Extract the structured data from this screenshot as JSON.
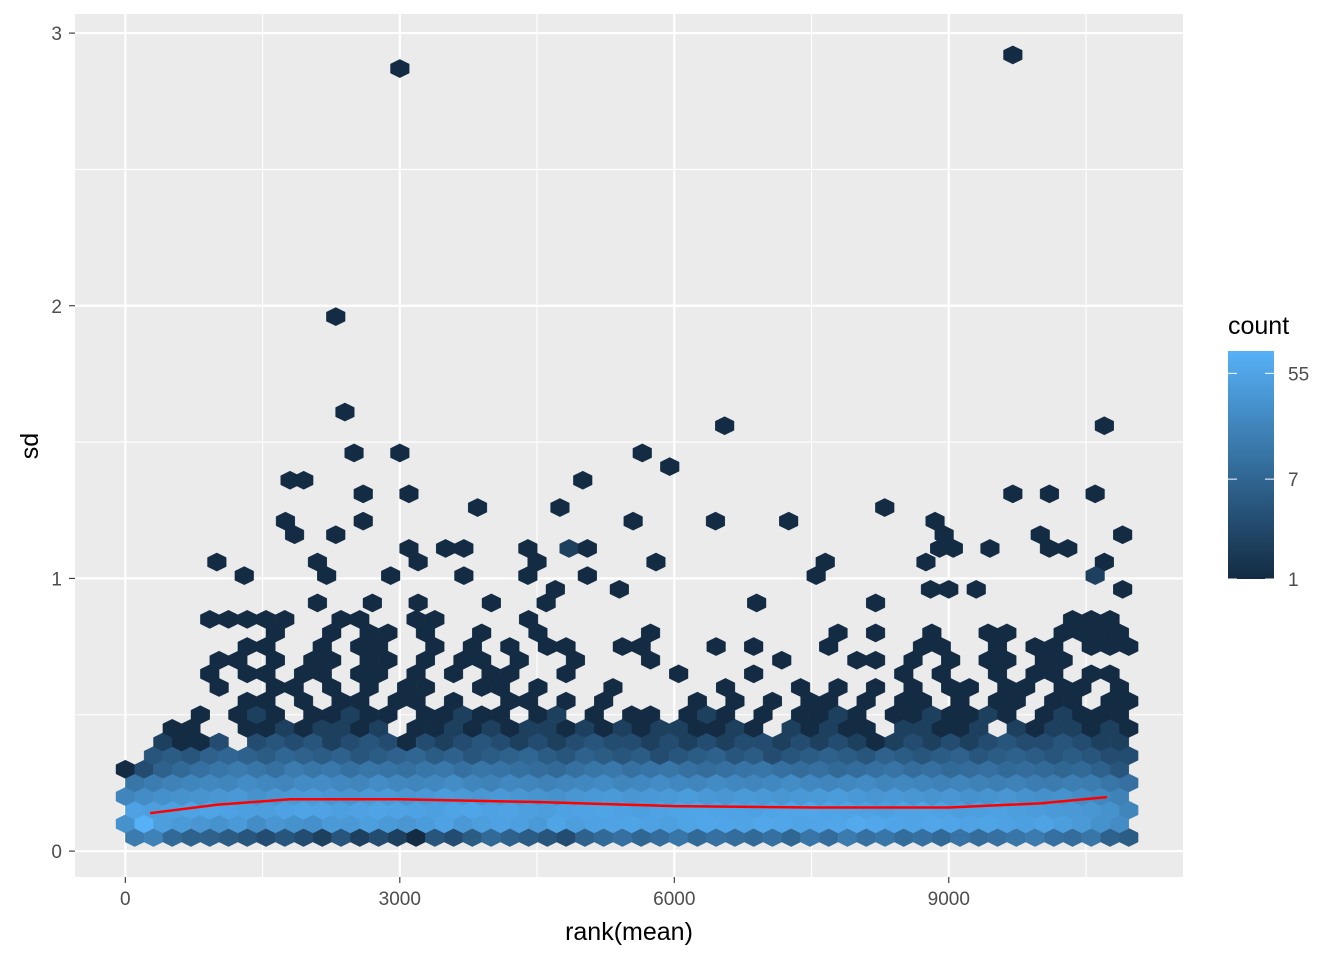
{
  "chart_data": {
    "type": "hexbin",
    "title": "",
    "xlabel": "rank(mean)",
    "ylabel": "sd",
    "xlim": [
      -550,
      11560
    ],
    "ylim": [
      -0.095,
      3.07
    ],
    "x_ticks": [
      0,
      3000,
      6000,
      9000
    ],
    "x_tick_labels": [
      "0",
      "3000",
      "6000",
      "9000"
    ],
    "y_ticks": [
      0,
      1,
      2,
      3
    ],
    "y_tick_labels": [
      "0",
      "1",
      "2",
      "3"
    ],
    "grid": true,
    "legend": {
      "title": "count",
      "placement": "right",
      "scale": "log10",
      "limits": [
        1,
        85
      ],
      "breaks": [
        1,
        7,
        55
      ],
      "break_labels": [
        "1",
        "7",
        "55"
      ],
      "low_color": "#132B43",
      "high_color": "#56B1F7"
    },
    "bin_x_step": 205,
    "hex_rows": [
      {
        "sd": 0.05,
        "x0": 102.5,
        "counts": [
          14,
          18,
          8,
          6,
          6,
          5,
          4,
          3,
          4,
          3,
          2,
          4,
          2,
          3,
          2,
          1,
          4,
          3,
          5,
          8,
          6,
          5,
          4,
          3,
          6,
          8,
          10,
          7,
          9,
          12,
          8,
          10,
          9,
          8,
          10,
          7,
          12,
          9,
          14,
          10,
          12,
          9,
          10,
          8,
          11,
          9,
          10,
          12,
          14,
          10,
          9,
          12,
          6,
          5
        ]
      },
      {
        "sd": 0.1,
        "x0": 0,
        "counts": [
          30,
          85,
          45,
          40,
          35,
          30,
          40,
          25,
          35,
          30,
          28,
          40,
          38,
          45,
          40,
          35,
          42,
          50,
          38,
          45,
          50,
          48,
          40,
          55,
          45,
          50,
          52,
          55,
          50,
          48,
          55,
          60,
          58,
          55,
          62,
          60,
          55,
          58,
          60,
          65,
          62,
          58,
          55,
          60,
          58,
          52,
          55,
          50,
          48,
          52,
          45,
          40,
          30,
          25
        ]
      },
      {
        "sd": 0.15,
        "x0": 102.5,
        "counts": [
          50,
          45,
          48,
          52,
          55,
          50,
          48,
          45,
          50,
          55,
          52,
          48,
          50,
          55,
          52,
          50,
          48,
          55,
          58,
          50,
          52,
          48,
          45,
          50,
          52,
          55,
          50,
          48,
          52,
          55,
          58,
          55,
          52,
          50,
          55,
          58,
          60,
          55,
          52,
          50,
          48,
          52,
          55,
          50,
          45,
          48,
          50,
          45,
          42,
          40,
          38,
          35,
          30,
          20
        ]
      },
      {
        "sd": 0.2,
        "x0": 0,
        "counts": [
          20,
          25,
          28,
          30,
          32,
          35,
          38,
          30,
          35,
          38,
          40,
          35,
          32,
          38,
          40,
          35,
          38,
          42,
          40,
          35,
          38,
          35,
          32,
          30,
          35,
          38,
          40,
          35,
          38,
          40,
          42,
          38,
          35,
          40,
          38,
          35,
          38,
          40,
          42,
          38,
          35,
          38,
          35,
          32,
          35,
          30,
          32,
          35,
          30,
          28,
          30,
          25,
          22,
          18
        ]
      },
      {
        "sd": 0.25,
        "x0": 102.5,
        "counts": [
          12,
          15,
          18,
          20,
          22,
          20,
          25,
          22,
          20,
          24,
          25,
          22,
          20,
          25,
          22,
          20,
          22,
          25,
          20,
          18,
          22,
          20,
          18,
          20,
          22,
          24,
          20,
          22,
          25,
          22,
          20,
          24,
          22,
          20,
          22,
          25,
          22,
          20,
          22,
          24,
          20,
          22,
          20,
          18,
          20,
          18,
          16,
          18,
          15,
          14,
          16,
          15,
          12,
          10
        ]
      },
      {
        "sd": 0.3,
        "x0": 0,
        "counts": [
          1,
          3,
          6,
          8,
          10,
          12,
          14,
          12,
          10,
          14,
          12,
          13,
          10,
          12,
          11,
          10,
          12,
          13,
          10,
          12,
          11,
          10,
          9,
          8,
          10,
          12,
          13,
          10,
          11,
          12,
          10,
          9,
          10,
          11,
          12,
          10,
          9,
          10,
          8,
          9,
          10,
          11,
          9,
          10,
          8,
          9,
          10,
          8,
          9,
          8,
          7,
          8,
          6,
          4
        ]
      },
      {
        "sd": 0.35,
        "x0": 102.5,
        "counts": [
          0,
          4,
          5,
          4,
          6,
          7,
          6,
          5,
          7,
          6,
          5,
          6,
          4,
          5,
          6,
          7,
          5,
          6,
          4,
          5,
          6,
          7,
          5,
          4,
          6,
          5,
          4,
          5,
          3,
          4,
          5,
          6,
          4,
          5,
          3,
          4,
          5,
          6,
          5,
          4,
          6,
          5,
          4,
          5,
          6,
          4,
          5,
          6,
          5,
          4,
          5,
          4,
          3,
          3
        ]
      },
      {
        "sd": 0.4,
        "x0": 0,
        "counts": [
          0,
          0,
          2,
          1,
          1,
          3,
          0,
          3,
          4,
          3,
          4,
          2,
          3,
          4,
          3,
          1,
          3,
          2,
          3,
          4,
          3,
          2,
          3,
          2,
          3,
          4,
          3,
          3,
          2,
          3,
          2,
          3,
          2,
          3,
          3,
          2,
          3,
          2,
          3,
          2,
          1,
          2,
          3,
          2,
          3,
          2,
          3,
          4,
          3,
          3,
          4,
          3,
          2,
          2
        ]
      },
      {
        "sd": 0.45,
        "x0": 102.5,
        "counts": [
          0,
          0,
          1,
          1,
          0,
          0,
          1,
          1,
          2,
          1,
          2,
          2,
          1,
          2,
          0,
          1,
          1,
          2,
          1,
          2,
          1,
          2,
          2,
          1,
          2,
          1,
          2,
          1,
          2,
          2,
          1,
          1,
          2,
          1,
          0,
          2,
          1,
          2,
          1,
          1,
          0,
          2,
          2,
          1,
          1,
          2,
          0,
          2,
          1,
          2,
          2,
          1,
          2,
          1
        ]
      },
      {
        "sd": 0.5,
        "x0": 0,
        "counts": [
          0,
          0,
          0,
          0,
          1,
          0,
          1,
          2,
          1,
          0,
          1,
          1,
          2,
          1,
          1,
          0,
          1,
          1,
          2,
          1,
          1,
          0,
          1,
          2,
          0,
          1,
          0,
          1,
          1,
          0,
          1,
          2,
          1,
          0,
          1,
          0,
          1,
          1,
          2,
          1,
          0,
          1,
          1,
          2,
          1,
          1,
          2,
          1,
          0,
          1,
          2,
          1,
          1,
          1
        ]
      },
      {
        "sd": 0.55,
        "x0": 102.5,
        "counts": [
          0,
          0,
          0,
          0,
          0,
          0,
          1,
          1,
          0,
          1,
          0,
          1,
          1,
          0,
          1,
          1,
          0,
          1,
          0,
          0,
          1,
          1,
          0,
          1,
          0,
          1,
          0,
          0,
          0,
          0,
          1,
          0,
          1,
          0,
          1,
          0,
          1,
          1,
          0,
          1,
          0,
          1,
          1,
          0,
          1,
          0,
          1,
          1,
          0,
          1,
          1,
          0,
          1,
          1
        ]
      },
      {
        "sd": 0.6,
        "x0": 0,
        "counts": [
          0,
          0,
          0,
          0,
          0,
          1,
          0,
          0,
          1,
          1,
          0,
          1,
          0,
          1,
          0,
          1,
          1,
          0,
          0,
          1,
          1,
          0,
          1,
          0,
          0,
          0,
          1,
          0,
          0,
          0,
          0,
          0,
          1,
          0,
          0,
          0,
          1,
          0,
          1,
          0,
          1,
          0,
          1,
          0,
          1,
          1,
          0,
          1,
          1,
          0,
          1,
          1,
          0,
          1
        ]
      },
      {
        "sd": 0.65,
        "x0": 102.5,
        "counts": [
          0,
          0,
          0,
          0,
          1,
          0,
          1,
          1,
          0,
          1,
          1,
          0,
          1,
          1,
          0,
          1,
          0,
          1,
          0,
          1,
          1,
          0,
          0,
          1,
          0,
          0,
          0,
          0,
          0,
          1,
          0,
          0,
          0,
          1,
          0,
          0,
          0,
          0,
          0,
          0,
          0,
          1,
          0,
          1,
          0,
          0,
          1,
          0,
          1,
          1,
          0,
          1,
          1,
          0
        ]
      },
      {
        "sd": 0.7,
        "x0": 0,
        "counts": [
          0,
          0,
          0,
          0,
          0,
          1,
          1,
          0,
          1,
          0,
          1,
          1,
          0,
          1,
          1,
          0,
          1,
          0,
          1,
          1,
          0,
          1,
          0,
          0,
          1,
          0,
          0,
          0,
          1,
          0,
          0,
          0,
          0,
          0,
          0,
          1,
          0,
          0,
          0,
          1,
          1,
          0,
          1,
          0,
          1,
          0,
          1,
          1,
          0,
          1,
          1,
          0,
          0,
          0
        ]
      },
      {
        "sd": 0.75,
        "x0": 102.5,
        "counts": [
          0,
          0,
          0,
          0,
          0,
          0,
          1,
          1,
          0,
          0,
          1,
          0,
          1,
          1,
          0,
          0,
          1,
          0,
          1,
          0,
          1,
          0,
          1,
          1,
          0,
          0,
          1,
          1,
          0,
          0,
          0,
          1,
          0,
          1,
          0,
          0,
          0,
          1,
          0,
          0,
          0,
          0,
          1,
          1,
          0,
          0,
          1,
          0,
          1,
          1,
          0,
          1,
          1,
          1
        ]
      },
      {
        "sd": 0.8,
        "x0": 0,
        "counts": [
          0,
          0,
          0,
          0,
          0,
          0,
          0,
          0,
          1,
          0,
          0,
          1,
          0,
          1,
          1,
          0,
          1,
          0,
          0,
          1,
          0,
          0,
          1,
          0,
          0,
          0,
          0,
          0,
          1,
          0,
          0,
          0,
          0,
          0,
          0,
          0,
          0,
          0,
          1,
          0,
          1,
          0,
          0,
          1,
          0,
          0,
          1,
          1,
          0,
          0,
          1,
          1,
          1,
          1
        ]
      },
      {
        "sd": 0.85,
        "x0": 102.5,
        "counts": [
          0,
          0,
          0,
          0,
          1,
          1,
          1,
          1,
          1,
          0,
          0,
          1,
          1,
          0,
          0,
          1,
          1,
          0,
          0,
          0,
          0,
          1,
          0,
          0,
          0,
          0,
          0,
          0,
          0,
          0,
          0,
          0,
          0,
          0,
          0,
          0,
          0,
          0,
          0,
          0,
          0,
          0,
          0,
          0,
          0,
          0,
          0,
          0,
          0,
          0,
          1,
          1,
          1,
          0
        ]
      }
    ],
    "sparse_hexes": [
      [
        1000,
        1.06,
        1
      ],
      [
        1300,
        1.01,
        1
      ],
      [
        1800,
        1.36,
        1
      ],
      [
        1950,
        1.36,
        1
      ],
      [
        1750,
        1.21,
        1
      ],
      [
        1850,
        1.16,
        1
      ],
      [
        2100,
        1.06,
        1
      ],
      [
        2200,
        1.01,
        1
      ],
      [
        2300,
        1.16,
        1
      ],
      [
        2300,
        1.96,
        1
      ],
      [
        2400,
        1.61,
        1
      ],
      [
        2500,
        1.46,
        1
      ],
      [
        2600,
        1.31,
        1
      ],
      [
        2600,
        1.21,
        1
      ],
      [
        2900,
        1.01,
        1
      ],
      [
        3000,
        1.46,
        1
      ],
      [
        3000,
        2.87,
        1
      ],
      [
        3100,
        1.31,
        1
      ],
      [
        3100,
        1.11,
        1
      ],
      [
        3200,
        1.06,
        1
      ],
      [
        3500,
        1.11,
        1
      ],
      [
        3700,
        1.11,
        1
      ],
      [
        3700,
        1.01,
        1
      ],
      [
        3850,
        1.26,
        1
      ],
      [
        4400,
        1.11,
        1
      ],
      [
        4500,
        1.06,
        1
      ],
      [
        4400,
        1.01,
        1
      ],
      [
        4750,
        1.26,
        1
      ],
      [
        4850,
        1.11,
        2
      ],
      [
        5000,
        1.36,
        1
      ],
      [
        5050,
        1.11,
        1
      ],
      [
        5050,
        1.01,
        1
      ],
      [
        5400,
        0.96,
        1
      ],
      [
        5550,
        1.21,
        1
      ],
      [
        5650,
        1.46,
        1
      ],
      [
        5800,
        1.06,
        1
      ],
      [
        5950,
        1.41,
        1
      ],
      [
        6450,
        1.21,
        1
      ],
      [
        6550,
        1.56,
        1
      ],
      [
        7250,
        1.21,
        1
      ],
      [
        7550,
        1.01,
        1
      ],
      [
        7650,
        1.06,
        1
      ],
      [
        8300,
        1.26,
        1
      ],
      [
        8200,
        0.91,
        1
      ],
      [
        8750,
        1.06,
        1
      ],
      [
        8850,
        1.21,
        1
      ],
      [
        8950,
        1.16,
        1
      ],
      [
        8900,
        1.11,
        1
      ],
      [
        9050,
        1.11,
        1
      ],
      [
        9450,
        1.11,
        1
      ],
      [
        9700,
        1.31,
        1
      ],
      [
        9700,
        2.92,
        1
      ],
      [
        10000,
        1.16,
        1
      ],
      [
        10100,
        1.11,
        1
      ],
      [
        10100,
        1.31,
        1
      ],
      [
        10300,
        1.11,
        1
      ],
      [
        10600,
        1.31,
        1
      ],
      [
        10700,
        1.56,
        1
      ],
      [
        10700,
        1.06,
        1
      ],
      [
        10600,
        1.01,
        2
      ],
      [
        10900,
        1.16,
        1
      ],
      [
        6900,
        0.91,
        1
      ],
      [
        4000,
        0.91,
        1
      ],
      [
        4700,
        0.96,
        1
      ],
      [
        8800,
        0.96,
        1
      ],
      [
        9000,
        0.96,
        1
      ],
      [
        9300,
        0.96,
        1
      ],
      [
        10900,
        0.96,
        1
      ],
      [
        3200,
        0.91,
        1
      ],
      [
        2700,
        0.91,
        1
      ],
      [
        2100,
        0.91,
        1
      ],
      [
        4600,
        0.91,
        1
      ]
    ],
    "trend_line": {
      "color": "#FF0000",
      "x": [
        270,
        1000,
        1800,
        3000,
        4500,
        6000,
        7500,
        9000,
        10000,
        10730
      ],
      "y": [
        0.139,
        0.17,
        0.19,
        0.19,
        0.18,
        0.165,
        0.16,
        0.16,
        0.175,
        0.198
      ]
    }
  }
}
